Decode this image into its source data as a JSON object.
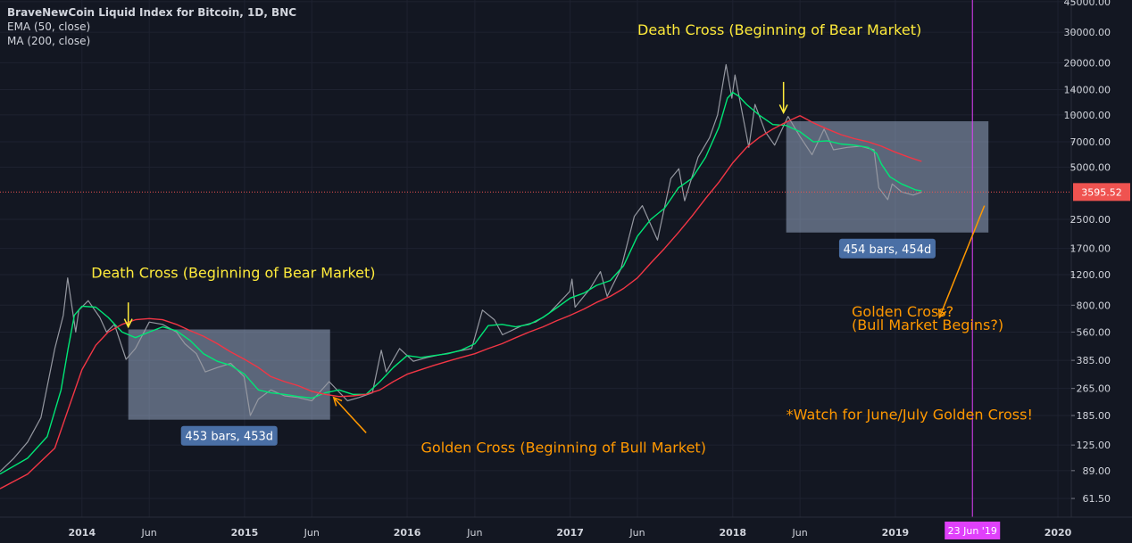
{
  "legend": {
    "title": "BraveNewCoin Liquid Index for Bitcoin, 1D, BNC",
    "ema": "EMA (50, close)",
    "ma": "MA (200, close)"
  },
  "chart_data": {
    "type": "line",
    "title": "BraveNewCoin Liquid Index for Bitcoin, 1D, BNC",
    "y_scale": "log",
    "ylim": [
      48,
      46000
    ],
    "xlim": [
      "2013-07-01",
      "2020-01-31"
    ],
    "y_ticks": [
      "45000.00",
      "30000.00",
      "20000.00",
      "14000.00",
      "10000.00",
      "7000.00",
      "5000.00",
      "3595.52",
      "2500.00",
      "1700.00",
      "1200.00",
      "800.00",
      "560.00",
      "385.00",
      "265.00",
      "185.00",
      "125.00",
      "89.00",
      "61.50"
    ],
    "x_ticks": [
      {
        "label": "2014",
        "date": "2014-01-01",
        "bold": true
      },
      {
        "label": "Jun",
        "date": "2014-06-01",
        "bold": false
      },
      {
        "label": "2015",
        "date": "2015-01-01",
        "bold": true
      },
      {
        "label": "Jun",
        "date": "2015-06-01",
        "bold": false
      },
      {
        "label": "2016",
        "date": "2016-01-01",
        "bold": true
      },
      {
        "label": "Jun",
        "date": "2016-06-01",
        "bold": false
      },
      {
        "label": "2017",
        "date": "2017-01-01",
        "bold": true
      },
      {
        "label": "Jun",
        "date": "2017-06-01",
        "bold": false
      },
      {
        "label": "2018",
        "date": "2018-01-01",
        "bold": true
      },
      {
        "label": "Jun",
        "date": "2018-06-01",
        "bold": false
      },
      {
        "label": "2019",
        "date": "2019-01-01",
        "bold": true
      },
      {
        "label": "2020",
        "date": "2020-01-01",
        "bold": true
      }
    ],
    "current_price": {
      "value": 3595.52,
      "label": "3595.52",
      "color": "#ef5350"
    },
    "vertical_marker": {
      "date": "2019-06-23",
      "label": "23 Jun '19",
      "color": "#e040fb"
    },
    "series": [
      {
        "name": "BraveNewCoin Liquid Index for Bitcoin",
        "color": "#9598a1",
        "values": [
          [
            "2013-07-01",
            88
          ],
          [
            "2013-08-01",
            105
          ],
          [
            "2013-09-01",
            130
          ],
          [
            "2013-10-01",
            180
          ],
          [
            "2013-11-01",
            450
          ],
          [
            "2013-11-20",
            700
          ],
          [
            "2013-11-30",
            1150
          ],
          [
            "2013-12-18",
            560
          ],
          [
            "2013-12-25",
            750
          ],
          [
            "2014-01-15",
            850
          ],
          [
            "2014-02-10",
            680
          ],
          [
            "2014-02-25",
            560
          ],
          [
            "2014-03-15",
            620
          ],
          [
            "2014-04-10",
            390
          ],
          [
            "2014-05-01",
            450
          ],
          [
            "2014-06-01",
            640
          ],
          [
            "2014-07-01",
            620
          ],
          [
            "2014-08-01",
            560
          ],
          [
            "2014-08-20",
            480
          ],
          [
            "2014-09-15",
            420
          ],
          [
            "2014-10-05",
            330
          ],
          [
            "2014-11-01",
            350
          ],
          [
            "2014-12-01",
            370
          ],
          [
            "2014-12-31",
            310
          ],
          [
            "2015-01-14",
            185
          ],
          [
            "2015-02-01",
            230
          ],
          [
            "2015-03-01",
            260
          ],
          [
            "2015-04-01",
            240
          ],
          [
            "2015-05-01",
            235
          ],
          [
            "2015-06-01",
            225
          ],
          [
            "2015-07-10",
            290
          ],
          [
            "2015-08-20",
            225
          ],
          [
            "2015-09-15",
            235
          ],
          [
            "2015-10-15",
            250
          ],
          [
            "2015-11-04",
            440
          ],
          [
            "2015-11-15",
            330
          ],
          [
            "2015-12-15",
            450
          ],
          [
            "2016-01-15",
            380
          ],
          [
            "2016-02-15",
            400
          ],
          [
            "2016-03-15",
            415
          ],
          [
            "2016-04-15",
            430
          ],
          [
            "2016-05-25",
            450
          ],
          [
            "2016-06-18",
            750
          ],
          [
            "2016-07-15",
            660
          ],
          [
            "2016-08-02",
            540
          ],
          [
            "2016-09-15",
            610
          ],
          [
            "2016-10-15",
            640
          ],
          [
            "2016-11-15",
            720
          ],
          [
            "2016-12-31",
            960
          ],
          [
            "2017-01-05",
            1130
          ],
          [
            "2017-01-12",
            780
          ],
          [
            "2017-02-15",
            1000
          ],
          [
            "2017-03-10",
            1250
          ],
          [
            "2017-03-25",
            900
          ],
          [
            "2017-04-25",
            1300
          ],
          [
            "2017-05-25",
            2600
          ],
          [
            "2017-06-12",
            3000
          ],
          [
            "2017-07-16",
            1900
          ],
          [
            "2017-08-15",
            4300
          ],
          [
            "2017-09-02",
            4900
          ],
          [
            "2017-09-15",
            3200
          ],
          [
            "2017-10-15",
            5700
          ],
          [
            "2017-11-10",
            7400
          ],
          [
            "2017-11-28",
            10000
          ],
          [
            "2017-12-17",
            19500
          ],
          [
            "2017-12-30",
            12500
          ],
          [
            "2018-01-06",
            17000
          ],
          [
            "2018-02-06",
            6500
          ],
          [
            "2018-02-20",
            11500
          ],
          [
            "2018-03-15",
            8000
          ],
          [
            "2018-04-05",
            6700
          ],
          [
            "2018-05-05",
            9800
          ],
          [
            "2018-06-01",
            7500
          ],
          [
            "2018-06-28",
            5900
          ],
          [
            "2018-07-25",
            8300
          ],
          [
            "2018-08-15",
            6300
          ],
          [
            "2018-09-15",
            6500
          ],
          [
            "2018-10-15",
            6600
          ],
          [
            "2018-11-14",
            6300
          ],
          [
            "2018-11-25",
            3800
          ],
          [
            "2018-12-15",
            3250
          ],
          [
            "2018-12-25",
            4000
          ],
          [
            "2019-01-15",
            3600
          ],
          [
            "2019-02-10",
            3450
          ],
          [
            "2019-03-01",
            3595
          ]
        ]
      },
      {
        "name": "EMA (50, close)",
        "color": "#00e676",
        "values": [
          [
            "2013-07-01",
            85
          ],
          [
            "2013-09-01",
            105
          ],
          [
            "2013-10-15",
            140
          ],
          [
            "2013-11-15",
            260
          ],
          [
            "2013-12-01",
            450
          ],
          [
            "2013-12-15",
            700
          ],
          [
            "2014-01-01",
            790
          ],
          [
            "2014-02-01",
            780
          ],
          [
            "2014-03-01",
            680
          ],
          [
            "2014-04-01",
            560
          ],
          [
            "2014-05-01",
            520
          ],
          [
            "2014-06-01",
            560
          ],
          [
            "2014-07-01",
            600
          ],
          [
            "2014-08-01",
            570
          ],
          [
            "2014-09-01",
            500
          ],
          [
            "2014-10-01",
            420
          ],
          [
            "2014-11-01",
            380
          ],
          [
            "2014-12-01",
            360
          ],
          [
            "2015-01-01",
            320
          ],
          [
            "2015-02-01",
            260
          ],
          [
            "2015-03-01",
            250
          ],
          [
            "2015-04-01",
            245
          ],
          [
            "2015-05-01",
            238
          ],
          [
            "2015-06-01",
            233
          ],
          [
            "2015-07-01",
            250
          ],
          [
            "2015-08-01",
            260
          ],
          [
            "2015-09-01",
            245
          ],
          [
            "2015-10-01",
            245
          ],
          [
            "2015-11-01",
            290
          ],
          [
            "2015-12-01",
            350
          ],
          [
            "2016-01-01",
            410
          ],
          [
            "2016-02-01",
            400
          ],
          [
            "2016-03-01",
            410
          ],
          [
            "2016-04-01",
            420
          ],
          [
            "2016-05-01",
            440
          ],
          [
            "2016-06-01",
            480
          ],
          [
            "2016-07-01",
            610
          ],
          [
            "2016-08-01",
            620
          ],
          [
            "2016-09-01",
            600
          ],
          [
            "2016-10-01",
            620
          ],
          [
            "2016-11-01",
            680
          ],
          [
            "2016-12-01",
            770
          ],
          [
            "2017-01-01",
            880
          ],
          [
            "2017-02-01",
            940
          ],
          [
            "2017-03-01",
            1040
          ],
          [
            "2017-04-01",
            1110
          ],
          [
            "2017-05-01",
            1350
          ],
          [
            "2017-06-01",
            2000
          ],
          [
            "2017-07-01",
            2500
          ],
          [
            "2017-08-01",
            2900
          ],
          [
            "2017-09-01",
            3800
          ],
          [
            "2017-10-01",
            4300
          ],
          [
            "2017-11-01",
            5700
          ],
          [
            "2017-12-01",
            8500
          ],
          [
            "2017-12-20",
            12500
          ],
          [
            "2018-01-01",
            13500
          ],
          [
            "2018-01-15",
            12800
          ],
          [
            "2018-02-01",
            11500
          ],
          [
            "2018-03-01",
            10000
          ],
          [
            "2018-04-01",
            8800
          ],
          [
            "2018-05-01",
            8700
          ],
          [
            "2018-06-01",
            8000
          ],
          [
            "2018-07-01",
            7000
          ],
          [
            "2018-08-01",
            7100
          ],
          [
            "2018-09-01",
            6800
          ],
          [
            "2018-10-01",
            6700
          ],
          [
            "2018-11-01",
            6500
          ],
          [
            "2018-11-20",
            6000
          ],
          [
            "2018-12-01",
            5200
          ],
          [
            "2018-12-20",
            4400
          ],
          [
            "2019-01-15",
            4000
          ],
          [
            "2019-02-15",
            3700
          ],
          [
            "2019-03-01",
            3650
          ]
        ]
      },
      {
        "name": "MA (200, close)",
        "color": "#f23645",
        "values": [
          [
            "2013-07-01",
            70
          ],
          [
            "2013-09-01",
            85
          ],
          [
            "2013-11-01",
            120
          ],
          [
            "2013-12-01",
            200
          ],
          [
            "2014-01-01",
            340
          ],
          [
            "2014-02-01",
            470
          ],
          [
            "2014-03-01",
            560
          ],
          [
            "2014-04-01",
            620
          ],
          [
            "2014-05-01",
            660
          ],
          [
            "2014-06-01",
            670
          ],
          [
            "2014-07-01",
            660
          ],
          [
            "2014-08-01",
            620
          ],
          [
            "2014-09-01",
            570
          ],
          [
            "2014-10-01",
            530
          ],
          [
            "2014-11-01",
            480
          ],
          [
            "2014-12-01",
            430
          ],
          [
            "2015-01-01",
            390
          ],
          [
            "2015-02-01",
            350
          ],
          [
            "2015-03-01",
            310
          ],
          [
            "2015-04-01",
            290
          ],
          [
            "2015-05-01",
            275
          ],
          [
            "2015-06-01",
            255
          ],
          [
            "2015-07-01",
            245
          ],
          [
            "2015-08-01",
            238
          ],
          [
            "2015-09-01",
            240
          ],
          [
            "2015-10-01",
            245
          ],
          [
            "2015-11-01",
            260
          ],
          [
            "2015-12-01",
            290
          ],
          [
            "2016-01-01",
            320
          ],
          [
            "2016-02-01",
            340
          ],
          [
            "2016-03-01",
            360
          ],
          [
            "2016-04-01",
            380
          ],
          [
            "2016-05-01",
            400
          ],
          [
            "2016-06-01",
            420
          ],
          [
            "2016-07-01",
            450
          ],
          [
            "2016-08-01",
            480
          ],
          [
            "2016-09-01",
            520
          ],
          [
            "2016-10-01",
            560
          ],
          [
            "2016-11-01",
            600
          ],
          [
            "2016-12-01",
            650
          ],
          [
            "2017-01-01",
            700
          ],
          [
            "2017-02-01",
            760
          ],
          [
            "2017-03-01",
            830
          ],
          [
            "2017-04-01",
            900
          ],
          [
            "2017-05-01",
            1000
          ],
          [
            "2017-06-01",
            1150
          ],
          [
            "2017-07-01",
            1400
          ],
          [
            "2017-08-01",
            1700
          ],
          [
            "2017-09-01",
            2100
          ],
          [
            "2017-10-01",
            2600
          ],
          [
            "2017-11-01",
            3300
          ],
          [
            "2017-12-01",
            4100
          ],
          [
            "2018-01-01",
            5300
          ],
          [
            "2018-02-01",
            6500
          ],
          [
            "2018-03-01",
            7400
          ],
          [
            "2018-04-01",
            8300
          ],
          [
            "2018-05-01",
            9100
          ],
          [
            "2018-06-01",
            9900
          ],
          [
            "2018-07-01",
            9000
          ],
          [
            "2018-08-01",
            8300
          ],
          [
            "2018-09-01",
            7700
          ],
          [
            "2018-10-01",
            7300
          ],
          [
            "2018-11-01",
            7000
          ],
          [
            "2018-12-01",
            6600
          ],
          [
            "2019-01-01",
            6100
          ],
          [
            "2019-02-01",
            5700
          ],
          [
            "2019-03-01",
            5400
          ]
        ]
      }
    ],
    "measure_boxes": [
      {
        "start": "2014-04-15",
        "end": "2015-07-12",
        "high": 580,
        "low": 175,
        "label": "453 bars, 453d"
      },
      {
        "start": "2018-05-01",
        "end": "2019-07-29",
        "high": 9200,
        "low": 2100,
        "label": "454 bars, 454d"
      }
    ],
    "annotations": [
      {
        "text": "Death Cross (Beginning of Bear Market)",
        "date": "2014-01-22",
        "price": 1150,
        "color": "#ffeb3b",
        "align": "start"
      },
      {
        "text": "Death Cross (Beginning of Bear Market)",
        "date": "2017-06-01",
        "price": 29000,
        "color": "#ffeb3b",
        "align": "start"
      },
      {
        "text": "Golden Cross (Beginning of Bull Market)",
        "date": "2016-02-01",
        "price": 113,
        "color": "#ff9800",
        "align": "start"
      },
      {
        "text": "Golden Cross?",
        "date": "2018-09-25",
        "price": 690,
        "color": "#ff9800",
        "align": "start"
      },
      {
        "text": "(Bull Market Begins?)",
        "date": "2018-09-25",
        "price": 575,
        "color": "#ff9800",
        "align": "start"
      },
      {
        "text": "*Watch for June/July Golden Cross!",
        "date": "2018-05-01",
        "price": 175,
        "color": "#ff9800",
        "align": "start"
      }
    ],
    "arrows": [
      {
        "color": "#ffeb3b",
        "from": [
          "2014-04-15",
          830
        ],
        "to": [
          "2014-04-15",
          600
        ]
      },
      {
        "color": "#ffeb3b",
        "from": [
          "2018-04-25",
          15500
        ],
        "to": [
          "2018-04-25",
          10300
        ]
      },
      {
        "color": "#ff9800",
        "from": [
          "2015-10-01",
          147
        ],
        "to": [
          "2015-07-20",
          235
        ]
      },
      {
        "color": "#ff9800",
        "from": [
          "2019-07-20",
          3000
        ],
        "to": [
          "2019-04-10",
          680
        ]
      }
    ],
    "grid": true,
    "legend": "top-left"
  }
}
